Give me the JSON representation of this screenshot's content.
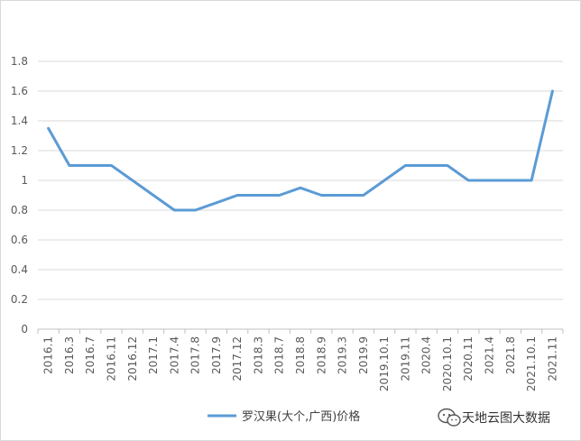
{
  "chart_data": {
    "type": "line",
    "categories": [
      "2016.1",
      "2016.3",
      "2016.7",
      "2016.11",
      "2016.12",
      "2017.1",
      "2017.4",
      "2017.8",
      "2017.9",
      "2017.12",
      "2018.3",
      "2018.7",
      "2018.8",
      "2018.9",
      "2019.3",
      "2019.9",
      "2019.10.1",
      "2019.11",
      "2020.4",
      "2020.10.1",
      "2020.11",
      "2021.4",
      "2021.8",
      "2021.10.1",
      "2021.11"
    ],
    "series": [
      {
        "name": "罗汉果(大个,广西)价格",
        "values": [
          1.35,
          1.1,
          1.1,
          1.1,
          1.0,
          0.9,
          0.8,
          0.8,
          0.85,
          0.9,
          0.9,
          0.9,
          0.95,
          0.9,
          0.9,
          0.9,
          1.0,
          1.1,
          1.1,
          1.1,
          1.0,
          1.0,
          1.0,
          1.0,
          1.6
        ],
        "color": "#5b9bd5"
      }
    ],
    "ylim": [
      0,
      1.8
    ],
    "yticks": [
      "0",
      "0.2",
      "0.4",
      "0.6",
      "0.8",
      "1",
      "1.2",
      "1.4",
      "1.6",
      "1.8"
    ],
    "grid": true,
    "legend": "bottom"
  },
  "watermark": {
    "text": "天地云图大数据",
    "icon": "wechat-icon"
  }
}
